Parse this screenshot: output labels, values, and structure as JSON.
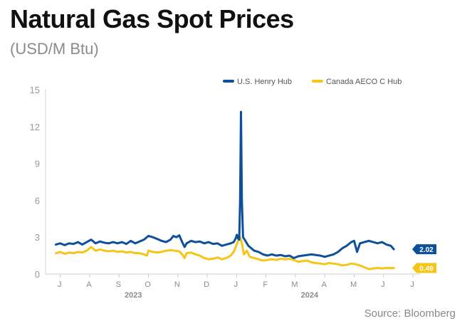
{
  "chart_data": {
    "type": "line",
    "title": "Natural Gas Spot Prices",
    "subtitle": "(USD/M Btu)",
    "source": "Source: Bloomberg",
    "ylim": [
      0,
      15
    ],
    "yticks": [
      0,
      3,
      6,
      9,
      12,
      15
    ],
    "grid": false,
    "legend_position": "top-right",
    "x_months": [
      "J",
      "A",
      "S",
      "O",
      "N",
      "D",
      "J",
      "F",
      "M",
      "A",
      "M",
      "J",
      "J"
    ],
    "x_years": [
      {
        "label": "2023",
        "month_index": 2.5
      },
      {
        "label": "2024",
        "month_index": 8.5
      }
    ],
    "series": [
      {
        "name": "U.S. Henry Hub",
        "color": "#0d4f9a",
        "end_label": "2.02",
        "points": [
          [
            0.0,
            2.4
          ],
          [
            0.15,
            2.5
          ],
          [
            0.3,
            2.35
          ],
          [
            0.45,
            2.5
          ],
          [
            0.6,
            2.45
          ],
          [
            0.75,
            2.6
          ],
          [
            0.9,
            2.4
          ],
          [
            1.05,
            2.6
          ],
          [
            1.2,
            2.8
          ],
          [
            1.35,
            2.5
          ],
          [
            1.5,
            2.65
          ],
          [
            1.65,
            2.55
          ],
          [
            1.8,
            2.5
          ],
          [
            1.95,
            2.6
          ],
          [
            2.1,
            2.5
          ],
          [
            2.25,
            2.6
          ],
          [
            2.4,
            2.45
          ],
          [
            2.55,
            2.7
          ],
          [
            2.7,
            2.5
          ],
          [
            2.85,
            2.65
          ],
          [
            3.0,
            2.8
          ],
          [
            3.15,
            3.1
          ],
          [
            3.3,
            3.0
          ],
          [
            3.45,
            2.85
          ],
          [
            3.6,
            2.7
          ],
          [
            3.75,
            2.6
          ],
          [
            3.9,
            2.8
          ],
          [
            4.0,
            3.1
          ],
          [
            4.1,
            3.0
          ],
          [
            4.2,
            3.15
          ],
          [
            4.3,
            2.6
          ],
          [
            4.38,
            2.2
          ],
          [
            4.45,
            2.5
          ],
          [
            4.6,
            2.7
          ],
          [
            4.75,
            2.6
          ],
          [
            4.9,
            2.65
          ],
          [
            5.05,
            2.5
          ],
          [
            5.2,
            2.6
          ],
          [
            5.35,
            2.45
          ],
          [
            5.5,
            2.5
          ],
          [
            5.65,
            2.3
          ],
          [
            5.8,
            2.4
          ],
          [
            5.95,
            2.5
          ],
          [
            6.05,
            2.6
          ],
          [
            6.12,
            2.9
          ],
          [
            6.16,
            3.2
          ],
          [
            6.2,
            2.9
          ],
          [
            6.24,
            2.8
          ],
          [
            6.27,
            6.0
          ],
          [
            6.3,
            13.2
          ],
          [
            6.33,
            6.0
          ],
          [
            6.37,
            3.0
          ],
          [
            6.45,
            2.7
          ],
          [
            6.55,
            2.3
          ],
          [
            6.65,
            2.1
          ],
          [
            6.75,
            1.9
          ],
          [
            6.9,
            1.8
          ],
          [
            7.05,
            1.6
          ],
          [
            7.2,
            1.5
          ],
          [
            7.35,
            1.6
          ],
          [
            7.5,
            1.5
          ],
          [
            7.65,
            1.55
          ],
          [
            7.8,
            1.45
          ],
          [
            7.95,
            1.5
          ],
          [
            8.1,
            1.3
          ],
          [
            8.25,
            1.45
          ],
          [
            8.4,
            1.5
          ],
          [
            8.55,
            1.55
          ],
          [
            8.7,
            1.6
          ],
          [
            8.85,
            1.55
          ],
          [
            9.0,
            1.5
          ],
          [
            9.15,
            1.4
          ],
          [
            9.3,
            1.5
          ],
          [
            9.45,
            1.6
          ],
          [
            9.6,
            1.8
          ],
          [
            9.75,
            2.1
          ],
          [
            9.9,
            2.3
          ],
          [
            10.05,
            2.6
          ],
          [
            10.15,
            2.7
          ],
          [
            10.25,
            1.8
          ],
          [
            10.35,
            2.5
          ],
          [
            10.5,
            2.6
          ],
          [
            10.65,
            2.7
          ],
          [
            10.8,
            2.6
          ],
          [
            10.95,
            2.5
          ],
          [
            11.1,
            2.6
          ],
          [
            11.25,
            2.4
          ],
          [
            11.4,
            2.3
          ],
          [
            11.5,
            2.02
          ]
        ]
      },
      {
        "name": "Canada AECO C Hub",
        "color": "#f5c518",
        "end_label": "0.49",
        "points": [
          [
            0.0,
            1.7
          ],
          [
            0.15,
            1.8
          ],
          [
            0.3,
            1.65
          ],
          [
            0.45,
            1.75
          ],
          [
            0.6,
            1.7
          ],
          [
            0.75,
            1.8
          ],
          [
            0.9,
            1.75
          ],
          [
            1.05,
            1.9
          ],
          [
            1.2,
            2.2
          ],
          [
            1.35,
            1.9
          ],
          [
            1.5,
            2.0
          ],
          [
            1.65,
            1.9
          ],
          [
            1.8,
            1.85
          ],
          [
            1.95,
            1.9
          ],
          [
            2.1,
            1.8
          ],
          [
            2.25,
            1.85
          ],
          [
            2.4,
            1.75
          ],
          [
            2.55,
            1.8
          ],
          [
            2.7,
            1.7
          ],
          [
            2.85,
            1.7
          ],
          [
            3.0,
            1.6
          ],
          [
            3.1,
            1.5
          ],
          [
            3.15,
            1.9
          ],
          [
            3.3,
            1.8
          ],
          [
            3.45,
            1.75
          ],
          [
            3.6,
            1.8
          ],
          [
            3.75,
            1.9
          ],
          [
            3.9,
            1.95
          ],
          [
            4.05,
            1.9
          ],
          [
            4.2,
            1.85
          ],
          [
            4.3,
            1.6
          ],
          [
            4.38,
            1.3
          ],
          [
            4.45,
            1.7
          ],
          [
            4.6,
            1.75
          ],
          [
            4.75,
            1.6
          ],
          [
            4.9,
            1.5
          ],
          [
            5.05,
            1.3
          ],
          [
            5.2,
            1.2
          ],
          [
            5.35,
            1.25
          ],
          [
            5.5,
            1.35
          ],
          [
            5.65,
            1.2
          ],
          [
            5.8,
            1.3
          ],
          [
            5.95,
            1.5
          ],
          [
            6.05,
            1.8
          ],
          [
            6.12,
            2.2
          ],
          [
            6.2,
            2.7
          ],
          [
            6.27,
            3.0
          ],
          [
            6.33,
            2.5
          ],
          [
            6.4,
            1.6
          ],
          [
            6.5,
            1.9
          ],
          [
            6.6,
            1.4
          ],
          [
            6.75,
            1.3
          ],
          [
            6.9,
            1.2
          ],
          [
            7.05,
            1.1
          ],
          [
            7.2,
            1.15
          ],
          [
            7.35,
            1.2
          ],
          [
            7.5,
            1.15
          ],
          [
            7.65,
            1.25
          ],
          [
            7.8,
            1.2
          ],
          [
            7.95,
            1.25
          ],
          [
            8.1,
            1.15
          ],
          [
            8.25,
            1.0
          ],
          [
            8.4,
            1.05
          ],
          [
            8.55,
            1.1
          ],
          [
            8.7,
            0.95
          ],
          [
            8.85,
            0.9
          ],
          [
            9.0,
            0.85
          ],
          [
            9.15,
            0.8
          ],
          [
            9.3,
            0.9
          ],
          [
            9.45,
            0.85
          ],
          [
            9.6,
            0.8
          ],
          [
            9.75,
            0.7
          ],
          [
            9.9,
            0.75
          ],
          [
            10.05,
            0.85
          ],
          [
            10.2,
            0.8
          ],
          [
            10.35,
            0.7
          ],
          [
            10.5,
            0.55
          ],
          [
            10.65,
            0.4
          ],
          [
            10.8,
            0.45
          ],
          [
            10.95,
            0.5
          ],
          [
            11.1,
            0.45
          ],
          [
            11.25,
            0.5
          ],
          [
            11.4,
            0.48
          ],
          [
            11.5,
            0.49
          ]
        ]
      }
    ]
  }
}
